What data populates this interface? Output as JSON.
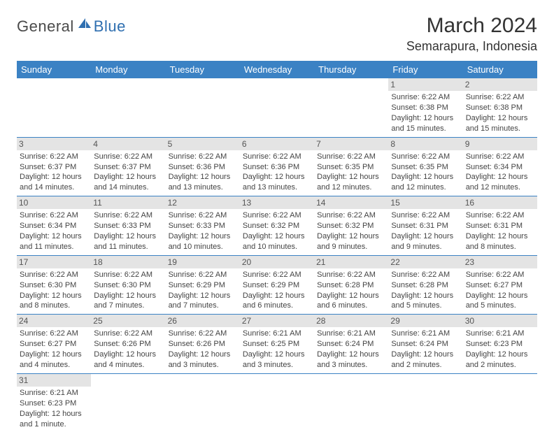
{
  "logo": {
    "text_dark": "General",
    "text_blue": "Blue"
  },
  "title": {
    "month": "March 2024",
    "location": "Semarapura, Indonesia"
  },
  "colors": {
    "header_bg": "#3b82c4",
    "header_fg": "#ffffff",
    "daynum_bg": "#e4e4e4",
    "border": "#3b82c4",
    "logo_blue": "#2f6fb0",
    "text": "#333333"
  },
  "day_headers": [
    "Sunday",
    "Monday",
    "Tuesday",
    "Wednesday",
    "Thursday",
    "Friday",
    "Saturday"
  ],
  "weeks": [
    [
      null,
      null,
      null,
      null,
      null,
      {
        "n": "1",
        "sr": "Sunrise: 6:22 AM",
        "ss": "Sunset: 6:38 PM",
        "d1": "Daylight: 12 hours",
        "d2": "and 15 minutes."
      },
      {
        "n": "2",
        "sr": "Sunrise: 6:22 AM",
        "ss": "Sunset: 6:38 PM",
        "d1": "Daylight: 12 hours",
        "d2": "and 15 minutes."
      }
    ],
    [
      {
        "n": "3",
        "sr": "Sunrise: 6:22 AM",
        "ss": "Sunset: 6:37 PM",
        "d1": "Daylight: 12 hours",
        "d2": "and 14 minutes."
      },
      {
        "n": "4",
        "sr": "Sunrise: 6:22 AM",
        "ss": "Sunset: 6:37 PM",
        "d1": "Daylight: 12 hours",
        "d2": "and 14 minutes."
      },
      {
        "n": "5",
        "sr": "Sunrise: 6:22 AM",
        "ss": "Sunset: 6:36 PM",
        "d1": "Daylight: 12 hours",
        "d2": "and 13 minutes."
      },
      {
        "n": "6",
        "sr": "Sunrise: 6:22 AM",
        "ss": "Sunset: 6:36 PM",
        "d1": "Daylight: 12 hours",
        "d2": "and 13 minutes."
      },
      {
        "n": "7",
        "sr": "Sunrise: 6:22 AM",
        "ss": "Sunset: 6:35 PM",
        "d1": "Daylight: 12 hours",
        "d2": "and 12 minutes."
      },
      {
        "n": "8",
        "sr": "Sunrise: 6:22 AM",
        "ss": "Sunset: 6:35 PM",
        "d1": "Daylight: 12 hours",
        "d2": "and 12 minutes."
      },
      {
        "n": "9",
        "sr": "Sunrise: 6:22 AM",
        "ss": "Sunset: 6:34 PM",
        "d1": "Daylight: 12 hours",
        "d2": "and 12 minutes."
      }
    ],
    [
      {
        "n": "10",
        "sr": "Sunrise: 6:22 AM",
        "ss": "Sunset: 6:34 PM",
        "d1": "Daylight: 12 hours",
        "d2": "and 11 minutes."
      },
      {
        "n": "11",
        "sr": "Sunrise: 6:22 AM",
        "ss": "Sunset: 6:33 PM",
        "d1": "Daylight: 12 hours",
        "d2": "and 11 minutes."
      },
      {
        "n": "12",
        "sr": "Sunrise: 6:22 AM",
        "ss": "Sunset: 6:33 PM",
        "d1": "Daylight: 12 hours",
        "d2": "and 10 minutes."
      },
      {
        "n": "13",
        "sr": "Sunrise: 6:22 AM",
        "ss": "Sunset: 6:32 PM",
        "d1": "Daylight: 12 hours",
        "d2": "and 10 minutes."
      },
      {
        "n": "14",
        "sr": "Sunrise: 6:22 AM",
        "ss": "Sunset: 6:32 PM",
        "d1": "Daylight: 12 hours",
        "d2": "and 9 minutes."
      },
      {
        "n": "15",
        "sr": "Sunrise: 6:22 AM",
        "ss": "Sunset: 6:31 PM",
        "d1": "Daylight: 12 hours",
        "d2": "and 9 minutes."
      },
      {
        "n": "16",
        "sr": "Sunrise: 6:22 AM",
        "ss": "Sunset: 6:31 PM",
        "d1": "Daylight: 12 hours",
        "d2": "and 8 minutes."
      }
    ],
    [
      {
        "n": "17",
        "sr": "Sunrise: 6:22 AM",
        "ss": "Sunset: 6:30 PM",
        "d1": "Daylight: 12 hours",
        "d2": "and 8 minutes."
      },
      {
        "n": "18",
        "sr": "Sunrise: 6:22 AM",
        "ss": "Sunset: 6:30 PM",
        "d1": "Daylight: 12 hours",
        "d2": "and 7 minutes."
      },
      {
        "n": "19",
        "sr": "Sunrise: 6:22 AM",
        "ss": "Sunset: 6:29 PM",
        "d1": "Daylight: 12 hours",
        "d2": "and 7 minutes."
      },
      {
        "n": "20",
        "sr": "Sunrise: 6:22 AM",
        "ss": "Sunset: 6:29 PM",
        "d1": "Daylight: 12 hours",
        "d2": "and 6 minutes."
      },
      {
        "n": "21",
        "sr": "Sunrise: 6:22 AM",
        "ss": "Sunset: 6:28 PM",
        "d1": "Daylight: 12 hours",
        "d2": "and 6 minutes."
      },
      {
        "n": "22",
        "sr": "Sunrise: 6:22 AM",
        "ss": "Sunset: 6:28 PM",
        "d1": "Daylight: 12 hours",
        "d2": "and 5 minutes."
      },
      {
        "n": "23",
        "sr": "Sunrise: 6:22 AM",
        "ss": "Sunset: 6:27 PM",
        "d1": "Daylight: 12 hours",
        "d2": "and 5 minutes."
      }
    ],
    [
      {
        "n": "24",
        "sr": "Sunrise: 6:22 AM",
        "ss": "Sunset: 6:27 PM",
        "d1": "Daylight: 12 hours",
        "d2": "and 4 minutes."
      },
      {
        "n": "25",
        "sr": "Sunrise: 6:22 AM",
        "ss": "Sunset: 6:26 PM",
        "d1": "Daylight: 12 hours",
        "d2": "and 4 minutes."
      },
      {
        "n": "26",
        "sr": "Sunrise: 6:22 AM",
        "ss": "Sunset: 6:26 PM",
        "d1": "Daylight: 12 hours",
        "d2": "and 3 minutes."
      },
      {
        "n": "27",
        "sr": "Sunrise: 6:21 AM",
        "ss": "Sunset: 6:25 PM",
        "d1": "Daylight: 12 hours",
        "d2": "and 3 minutes."
      },
      {
        "n": "28",
        "sr": "Sunrise: 6:21 AM",
        "ss": "Sunset: 6:24 PM",
        "d1": "Daylight: 12 hours",
        "d2": "and 3 minutes."
      },
      {
        "n": "29",
        "sr": "Sunrise: 6:21 AM",
        "ss": "Sunset: 6:24 PM",
        "d1": "Daylight: 12 hours",
        "d2": "and 2 minutes."
      },
      {
        "n": "30",
        "sr": "Sunrise: 6:21 AM",
        "ss": "Sunset: 6:23 PM",
        "d1": "Daylight: 12 hours",
        "d2": "and 2 minutes."
      }
    ],
    [
      {
        "n": "31",
        "sr": "Sunrise: 6:21 AM",
        "ss": "Sunset: 6:23 PM",
        "d1": "Daylight: 12 hours",
        "d2": "and 1 minute."
      },
      null,
      null,
      null,
      null,
      null,
      null
    ]
  ]
}
